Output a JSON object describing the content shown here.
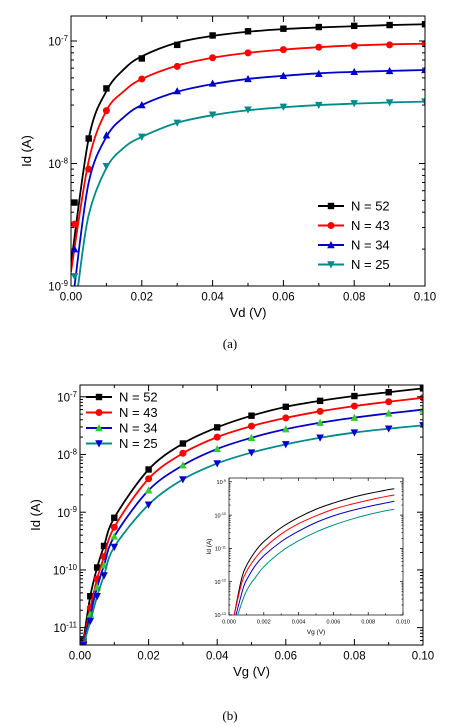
{
  "chart_data": [
    {
      "id": "a",
      "type": "line",
      "panel_label": "(a)",
      "xlabel": "Vd (V)",
      "ylabel": "Id (A)",
      "xlim": [
        0,
        0.1
      ],
      "ylim": [
        1e-09,
        1.6e-07
      ],
      "yscale": "log",
      "legend_position": "bottom-right",
      "x_ticks": [
        {
          "v": 0,
          "label": "0.00"
        },
        {
          "v": 0.02,
          "label": "0.02"
        },
        {
          "v": 0.04,
          "label": "0.04"
        },
        {
          "v": 0.06,
          "label": "0.06"
        },
        {
          "v": 0.08,
          "label": "0.08"
        },
        {
          "v": 0.1,
          "label": "0.10"
        }
      ],
      "y_ticks": [
        {
          "v": 1e-09,
          "base": "10",
          "exp": "-9"
        },
        {
          "v": 1e-08,
          "base": "10",
          "exp": "-8"
        },
        {
          "v": 1e-07,
          "base": "10",
          "exp": "-7"
        }
      ],
      "series": [
        {
          "name": "N = 52",
          "color": "#000000",
          "marker": "square",
          "x": [
            0.001,
            0.005,
            0.01,
            0.02,
            0.03,
            0.04,
            0.05,
            0.06,
            0.07,
            0.08,
            0.09,
            0.1
          ],
          "values": [
            4.8e-09,
            1.6e-08,
            4.1e-08,
            7.2e-08,
            9.3e-08,
            1.11e-07,
            1.2e-07,
            1.26e-07,
            1.3e-07,
            1.33e-07,
            1.35e-07,
            1.37e-07
          ],
          "fit_x": [
            0,
            0.005,
            0.01,
            0.015,
            0.02,
            0.03,
            0.04,
            0.05,
            0.06,
            0.07,
            0.08,
            0.09,
            0.1
          ],
          "fit": [
            1.5e-09,
            1.6e-08,
            3.9e-08,
            5.9e-08,
            7.5e-08,
            9.7e-08,
            1.1e-07,
            1.19e-07,
            1.25e-07,
            1.29e-07,
            1.32e-07,
            1.35e-07,
            1.37e-07
          ]
        },
        {
          "name": "N = 43",
          "color": "#ff0000",
          "marker": "circle",
          "x": [
            0.001,
            0.005,
            0.01,
            0.02,
            0.03,
            0.04,
            0.05,
            0.06,
            0.07,
            0.08,
            0.09,
            0.1
          ],
          "values": [
            3.2e-09,
            9e-09,
            2.7e-08,
            4.9e-08,
            6.2e-08,
            7.3e-08,
            8e-08,
            8.5e-08,
            8.9e-08,
            9.1e-08,
            9.3e-08,
            9.5e-08
          ],
          "fit_x": [
            0,
            0.005,
            0.01,
            0.015,
            0.02,
            0.03,
            0.04,
            0.05,
            0.06,
            0.07,
            0.08,
            0.09,
            0.1
          ],
          "fit": [
            1.3e-09,
            1.05e-08,
            2.7e-08,
            3.9e-08,
            4.9e-08,
            6.3e-08,
            7.3e-08,
            8e-08,
            8.5e-08,
            8.9e-08,
            9.2e-08,
            9.4e-08,
            9.5e-08
          ]
        },
        {
          "name": "N = 34",
          "color": "#0000cc",
          "marker": "triangle-up",
          "x": [
            0.001,
            0.01,
            0.02,
            0.03,
            0.04,
            0.05,
            0.06,
            0.07,
            0.08,
            0.09,
            0.1
          ],
          "values": [
            2e-09,
            1.7e-08,
            3e-08,
            3.9e-08,
            4.5e-08,
            4.9e-08,
            5.2e-08,
            5.4e-08,
            5.6e-08,
            5.7e-08,
            5.8e-08
          ],
          "fit_x": [
            0.001,
            0.005,
            0.01,
            0.015,
            0.02,
            0.03,
            0.04,
            0.05,
            0.06,
            0.07,
            0.08,
            0.09,
            0.1
          ],
          "fit": [
            1e-09,
            7e-09,
            1.65e-08,
            2.4e-08,
            3e-08,
            3.85e-08,
            4.45e-08,
            4.9e-08,
            5.2e-08,
            5.45e-08,
            5.6e-08,
            5.7e-08,
            5.8e-08
          ]
        },
        {
          "name": "N = 25",
          "color": "#008b8b",
          "marker": "triangle-down",
          "x": [
            0.001,
            0.01,
            0.02,
            0.03,
            0.04,
            0.05,
            0.06,
            0.07,
            0.08,
            0.09,
            0.1
          ],
          "values": [
            1.2e-09,
            9.5e-09,
            1.65e-08,
            2.15e-08,
            2.5e-08,
            2.75e-08,
            2.9e-08,
            3e-08,
            3.1e-08,
            3.15e-08,
            3.2e-08
          ],
          "fit_x": [
            0.002,
            0.005,
            0.01,
            0.015,
            0.02,
            0.03,
            0.04,
            0.05,
            0.06,
            0.07,
            0.08,
            0.09,
            0.1
          ],
          "fit": [
            1e-09,
            3.8e-09,
            9.2e-09,
            1.35e-08,
            1.65e-08,
            2.15e-08,
            2.48e-08,
            2.72e-08,
            2.88e-08,
            3e-08,
            3.08e-08,
            3.15e-08,
            3.2e-08
          ]
        }
      ]
    },
    {
      "id": "b",
      "type": "line",
      "panel_label": "(b)",
      "xlabel": "Vg (V)",
      "ylabel": "Id (A)",
      "xlim": [
        0,
        0.1
      ],
      "ylim": [
        5e-12,
        1.6e-07
      ],
      "yscale": "log",
      "legend_position": "top-left",
      "x_ticks": [
        {
          "v": 0,
          "label": "0.00"
        },
        {
          "v": 0.02,
          "label": "0.02"
        },
        {
          "v": 0.04,
          "label": "0.04"
        },
        {
          "v": 0.06,
          "label": "0.06"
        },
        {
          "v": 0.08,
          "label": "0.08"
        },
        {
          "v": 0.1,
          "label": "0.10"
        }
      ],
      "y_ticks": [
        {
          "v": 1e-11,
          "base": "10",
          "exp": "-11"
        },
        {
          "v": 1e-10,
          "base": "10",
          "exp": "-10"
        },
        {
          "v": 1e-09,
          "base": "10",
          "exp": "-9"
        },
        {
          "v": 1e-08,
          "base": "10",
          "exp": "-8"
        },
        {
          "v": 1e-07,
          "base": "10",
          "exp": "-7"
        }
      ],
      "series": [
        {
          "name": "N = 52",
          "color": "#000000",
          "marker": "square",
          "x": [
            0.001,
            0.003,
            0.005,
            0.007,
            0.01,
            0.02,
            0.03,
            0.04,
            0.05,
            0.06,
            0.07,
            0.08,
            0.09,
            0.1
          ],
          "values": [
            6e-12,
            3.5e-11,
            1.1e-10,
            2.6e-10,
            8e-10,
            5.5e-09,
            1.55e-08,
            2.95e-08,
            4.7e-08,
            6.7e-08,
            8.5e-08,
            1.03e-07,
            1.2e-07,
            1.4e-07
          ]
        },
        {
          "name": "N = 43",
          "color": "#ff0000",
          "marker": "circle",
          "x": [
            0.001,
            0.003,
            0.005,
            0.007,
            0.01,
            0.02,
            0.03,
            0.04,
            0.05,
            0.06,
            0.07,
            0.08,
            0.09,
            0.1
          ],
          "values": [
            5.5e-12,
            2.2e-11,
            7e-11,
            1.7e-10,
            5.5e-10,
            3.8e-09,
            1.05e-08,
            2e-08,
            3.1e-08,
            4.3e-08,
            5.6e-08,
            6.9e-08,
            8.2e-08,
            9.6e-08
          ]
        },
        {
          "name": "N = 34",
          "color": "#0000cc",
          "marker": "triangle-up",
          "marker_color": "#33cc33",
          "x": [
            0.001,
            0.003,
            0.005,
            0.007,
            0.01,
            0.02,
            0.03,
            0.04,
            0.05,
            0.06,
            0.07,
            0.08,
            0.09,
            0.1
          ],
          "values": [
            5e-12,
            1.7e-11,
            5e-11,
            1.2e-10,
            3.8e-10,
            2.4e-09,
            6.5e-09,
            1.25e-08,
            1.95e-08,
            2.75e-08,
            3.55e-08,
            4.35e-08,
            5.15e-08,
            6e-08
          ]
        },
        {
          "name": "N = 25",
          "color": "#008b8b",
          "marker": "triangle-down",
          "marker_color": "#0000cc",
          "x": [
            0.001,
            0.003,
            0.005,
            0.007,
            0.01,
            0.02,
            0.03,
            0.04,
            0.05,
            0.06,
            0.07,
            0.08,
            0.09,
            0.1
          ],
          "values": [
            5e-12,
            1.3e-11,
            3.5e-11,
            8e-11,
            2.5e-10,
            1.35e-09,
            3.7e-09,
            7e-09,
            1.08e-08,
            1.5e-08,
            1.95e-08,
            2.4e-08,
            2.8e-08,
            3.2e-08
          ]
        }
      ],
      "inset": {
        "type": "line",
        "xlabel": "Vg (V)",
        "ylabel": "Id (A)",
        "xlim": [
          0,
          0.01
        ],
        "ylim": [
          1e-13,
          1.3e-09
        ],
        "yscale": "log",
        "x_ticks": [
          {
            "v": 0,
            "label": "0.000"
          },
          {
            "v": 0.002,
            "label": "0.002"
          },
          {
            "v": 0.004,
            "label": "0.004"
          },
          {
            "v": 0.006,
            "label": "0.006"
          },
          {
            "v": 0.008,
            "label": "0.008"
          },
          {
            "v": 0.01,
            "label": "0.010"
          }
        ],
        "y_ticks": [
          {
            "v": 1e-13,
            "base": "10",
            "exp": "-13"
          },
          {
            "v": 1e-12,
            "base": "10",
            "exp": "-12"
          },
          {
            "v": 1e-11,
            "base": "10",
            "exp": "-11"
          },
          {
            "v": 1e-10,
            "base": "10",
            "exp": "-10"
          },
          {
            "v": 1e-09,
            "base": "10",
            "exp": "-9"
          }
        ],
        "series": [
          {
            "color": "#000000",
            "x": [
              0.0003,
              0.0007,
              0.001,
              0.0015,
              0.002,
              0.003,
              0.004,
              0.005,
              0.006,
              0.007,
              0.008,
              0.009,
              0.0095
            ],
            "values": [
              1e-13,
              1.1e-12,
              3e-12,
              8e-12,
              1.6e-11,
              4.2e-11,
              8.5e-11,
              1.5e-10,
              2.3e-10,
              3.3e-10,
              4.4e-10,
              5.6e-10,
              6.2e-10
            ]
          },
          {
            "color": "#ff0000",
            "x": [
              0.0003,
              0.0007,
              0.001,
              0.0015,
              0.002,
              0.003,
              0.004,
              0.005,
              0.006,
              0.007,
              0.008,
              0.009,
              0.0095
            ],
            "values": [
              1e-13,
              8e-13,
              2e-12,
              5e-12,
              1e-11,
              2.7e-11,
              5.5e-11,
              9.5e-11,
              1.5e-10,
              2.1e-10,
              2.8e-10,
              3.6e-10,
              4e-10
            ]
          },
          {
            "color": "#0000cc",
            "x": [
              0.0004,
              0.0008,
              0.001,
              0.0015,
              0.002,
              0.003,
              0.004,
              0.005,
              0.006,
              0.007,
              0.008,
              0.009,
              0.0095
            ],
            "values": [
              1e-13,
              6e-13,
              1.1e-12,
              3e-12,
              6e-12,
              1.6e-11,
              3.3e-11,
              6e-11,
              9.5e-11,
              1.35e-10,
              1.8e-10,
              2.3e-10,
              2.6e-10
            ]
          },
          {
            "color": "#008b8b",
            "x": [
              0.0005,
              0.0009,
              0.0012,
              0.0015,
              0.002,
              0.003,
              0.004,
              0.005,
              0.006,
              0.007,
              0.008,
              0.009,
              0.0095
            ],
            "values": [
              1e-13,
              4e-13,
              8e-13,
              1.3e-12,
              2.8e-12,
              8e-12,
              1.7e-11,
              3.1e-11,
              5e-11,
              7.4e-11,
              1.03e-10,
              1.35e-10,
              1.5e-10
            ]
          }
        ]
      }
    }
  ]
}
